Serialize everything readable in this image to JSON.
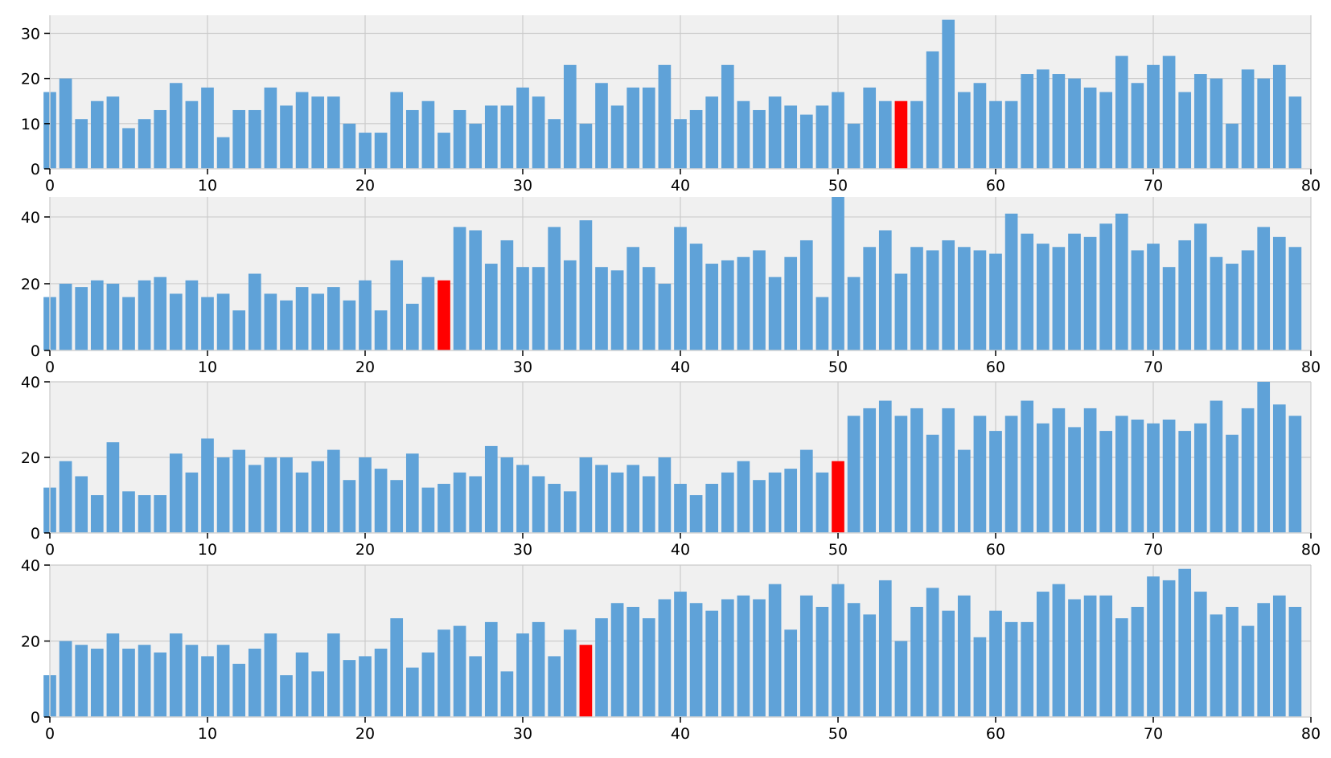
{
  "colors": {
    "bar": "#5fa2d8",
    "highlight": "#ff0000",
    "plot_bg": "#f0f0f0",
    "grid": "#cbcbcb"
  },
  "chart_data": [
    {
      "type": "bar",
      "grid": true,
      "xlim": [
        0,
        80
      ],
      "ylim": [
        0,
        34
      ],
      "xticks": [
        0,
        10,
        20,
        30,
        40,
        50,
        60,
        70,
        80
      ],
      "yticks": [
        0,
        10,
        20,
        30
      ],
      "highlight_index": 54,
      "values": [
        17,
        20,
        11,
        15,
        16,
        9,
        11,
        13,
        19,
        15,
        18,
        7,
        13,
        13,
        18,
        14,
        17,
        16,
        16,
        10,
        8,
        8,
        17,
        13,
        15,
        8,
        13,
        10,
        14,
        14,
        18,
        16,
        11,
        23,
        10,
        19,
        14,
        18,
        18,
        23,
        11,
        13,
        16,
        23,
        15,
        13,
        16,
        14,
        12,
        14,
        17,
        10,
        18,
        15,
        15,
        15,
        26,
        33,
        17,
        19,
        15,
        15,
        21,
        22,
        21,
        20,
        18,
        17,
        25,
        19,
        23,
        25,
        17,
        21,
        20,
        10,
        22,
        20,
        23,
        16
      ]
    },
    {
      "type": "bar",
      "grid": true,
      "xlim": [
        0,
        80
      ],
      "ylim": [
        0,
        46
      ],
      "xticks": [
        0,
        10,
        20,
        30,
        40,
        50,
        60,
        70,
        80
      ],
      "yticks": [
        0,
        20,
        40
      ],
      "highlight_index": 25,
      "values": [
        16,
        20,
        19,
        21,
        20,
        16,
        21,
        22,
        17,
        21,
        16,
        17,
        12,
        23,
        17,
        15,
        19,
        17,
        19,
        15,
        21,
        12,
        27,
        14,
        22,
        21,
        37,
        36,
        26,
        33,
        25,
        25,
        37,
        27,
        39,
        25,
        24,
        31,
        25,
        20,
        37,
        32,
        26,
        27,
        28,
        30,
        22,
        28,
        33,
        16,
        46,
        22,
        31,
        36,
        23,
        31,
        30,
        33,
        31,
        30,
        29,
        41,
        35,
        32,
        31,
        35,
        34,
        38,
        41,
        30,
        32,
        25,
        33,
        38,
        28,
        26,
        30,
        37,
        34,
        31
      ]
    },
    {
      "type": "bar",
      "grid": true,
      "xlim": [
        0,
        80
      ],
      "ylim": [
        0,
        40
      ],
      "xticks": [
        0,
        10,
        20,
        30,
        40,
        50,
        60,
        70,
        80
      ],
      "yticks": [
        0,
        20,
        40
      ],
      "highlight_index": 50,
      "values": [
        12,
        19,
        15,
        10,
        24,
        11,
        10,
        10,
        21,
        16,
        25,
        20,
        22,
        18,
        20,
        20,
        16,
        19,
        22,
        14,
        20,
        17,
        14,
        21,
        12,
        13,
        16,
        15,
        23,
        20,
        18,
        15,
        13,
        11,
        20,
        18,
        16,
        18,
        15,
        20,
        13,
        10,
        13,
        16,
        19,
        14,
        16,
        17,
        22,
        16,
        19,
        31,
        33,
        35,
        31,
        33,
        26,
        33,
        22,
        31,
        27,
        31,
        35,
        29,
        33,
        28,
        33,
        27,
        31,
        30,
        29,
        30,
        27,
        29,
        35,
        26,
        33,
        40,
        34,
        31
      ]
    },
    {
      "type": "bar",
      "grid": true,
      "xlim": [
        0,
        80
      ],
      "ylim": [
        0,
        40
      ],
      "xticks": [
        0,
        10,
        20,
        30,
        40,
        50,
        60,
        70,
        80
      ],
      "yticks": [
        0,
        20,
        40
      ],
      "highlight_index": 34,
      "values": [
        11,
        20,
        19,
        18,
        22,
        18,
        19,
        17,
        22,
        19,
        16,
        19,
        14,
        18,
        22,
        11,
        17,
        12,
        22,
        15,
        16,
        18,
        26,
        13,
        17,
        23,
        24,
        16,
        25,
        12,
        22,
        25,
        16,
        23,
        19,
        26,
        30,
        29,
        26,
        31,
        33,
        30,
        28,
        31,
        32,
        31,
        35,
        23,
        32,
        29,
        35,
        30,
        27,
        36,
        20,
        29,
        34,
        28,
        32,
        21,
        28,
        25,
        25,
        33,
        35,
        31,
        32,
        32,
        26,
        29,
        37,
        36,
        39,
        33,
        27,
        29,
        24,
        30,
        32,
        29
      ]
    }
  ]
}
